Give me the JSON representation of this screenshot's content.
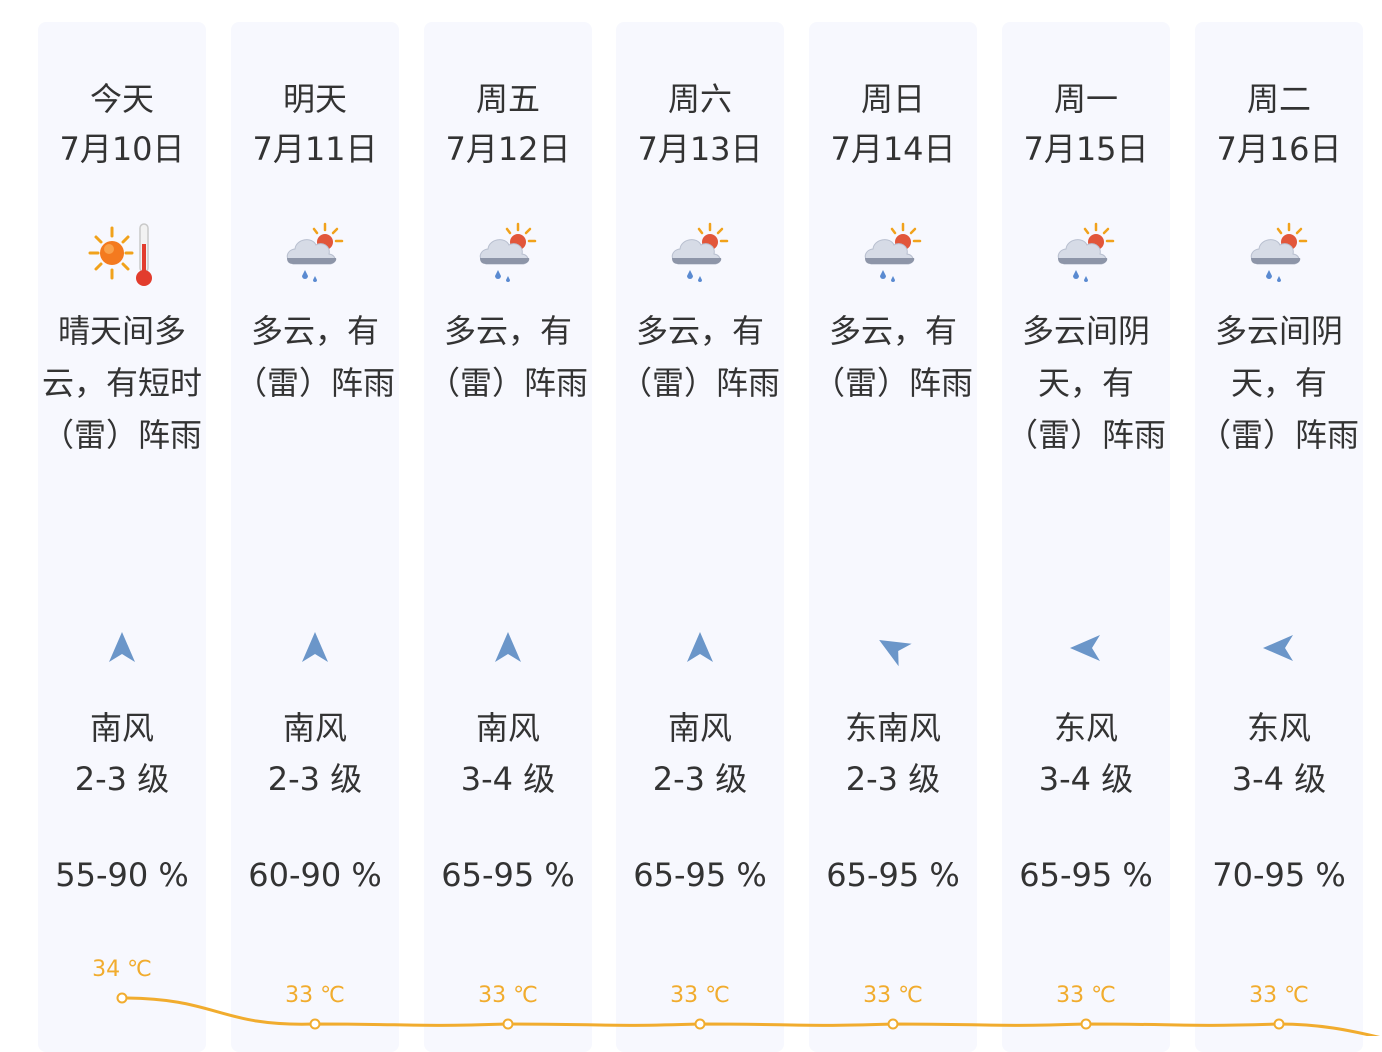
{
  "days": [
    {
      "day": "今天",
      "date": "7月10日",
      "weather_icon": "sunny-hot-thermometer-icon",
      "desc_lines": [
        "晴天间多",
        "云，有短时",
        "（雷）阵雨"
      ],
      "wind_dir": "南风",
      "wind_level": "2-3 级",
      "humidity": "55-90 %",
      "temp_label": "34 ℃",
      "temp": 34,
      "wind_arrow": "arrow-north-icon"
    },
    {
      "day": "明天",
      "date": "7月11日",
      "weather_icon": "cloudy-sun-rain-icon",
      "desc_lines": [
        "多云，有",
        "（雷）阵雨"
      ],
      "wind_dir": "南风",
      "wind_level": "2-3 级",
      "humidity": "60-90 %",
      "temp_label": "33 ℃",
      "temp": 33,
      "wind_arrow": "arrow-north-icon"
    },
    {
      "day": "周五",
      "date": "7月12日",
      "weather_icon": "cloudy-sun-rain-icon",
      "desc_lines": [
        "多云，有",
        "（雷）阵雨"
      ],
      "wind_dir": "南风",
      "wind_level": "3-4 级",
      "humidity": "65-95 %",
      "temp_label": "33 ℃",
      "temp": 33,
      "wind_arrow": "arrow-north-icon"
    },
    {
      "day": "周六",
      "date": "7月13日",
      "weather_icon": "cloudy-sun-rain-icon",
      "desc_lines": [
        "多云，有",
        "（雷）阵雨"
      ],
      "wind_dir": "南风",
      "wind_level": "2-3 级",
      "humidity": "65-95 %",
      "temp_label": "33 ℃",
      "temp": 33,
      "wind_arrow": "arrow-north-icon"
    },
    {
      "day": "周日",
      "date": "7月14日",
      "weather_icon": "cloudy-sun-rain-icon",
      "desc_lines": [
        "多云，有",
        "（雷）阵雨"
      ],
      "wind_dir": "东南风",
      "wind_level": "2-3 级",
      "humidity": "65-95 %",
      "temp_label": "33 ℃",
      "temp": 33,
      "wind_arrow": "arrow-northwest-icon"
    },
    {
      "day": "周一",
      "date": "7月15日",
      "weather_icon": "cloudy-sun-rain-icon",
      "desc_lines": [
        "多云间阴",
        "天，有",
        "（雷）阵雨"
      ],
      "wind_dir": "东风",
      "wind_level": "3-4 级",
      "humidity": "65-95 %",
      "temp_label": "33 ℃",
      "temp": 33,
      "wind_arrow": "arrow-west-icon"
    },
    {
      "day": "周二",
      "date": "7月16日",
      "weather_icon": "cloudy-sun-rain-icon",
      "desc_lines": [
        "多云间阴",
        "天，有",
        "（雷）阵雨"
      ],
      "wind_dir": "东风",
      "wind_level": "3-4 级",
      "humidity": "70-95 %",
      "temp_label": "33 ℃",
      "temp": 33,
      "wind_arrow": "arrow-west-icon"
    }
  ],
  "colors": {
    "column_bg": "#f7f8fe",
    "temp_line": "#f1ac2e",
    "wind_arrow": "#6b96c9",
    "text": "#333333"
  }
}
